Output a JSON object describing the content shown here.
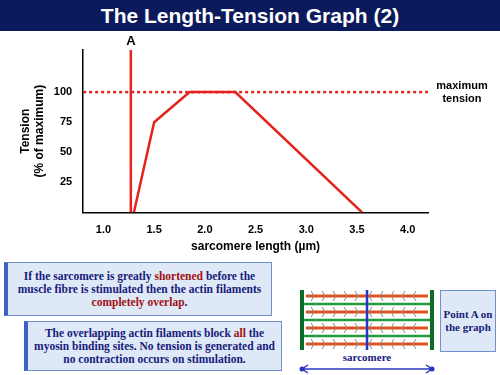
{
  "title": "The Length-Tension Graph (2)",
  "chart_data": {
    "type": "line",
    "x_label": "sarcomere length (µm)",
    "y_label": [
      "Tension",
      "(% of maximum)"
    ],
    "series": [
      {
        "x": [
          1.3,
          1.5,
          1.85,
          2.3,
          3.55
        ],
        "values": [
          0,
          75,
          100,
          100,
          0
        ],
        "color": "#e3231c",
        "line_style": "solid"
      },
      {
        "x": [
          1.27,
          1.27
        ],
        "values": [
          0,
          135
        ],
        "color": "#e3231c",
        "line_style": "solid"
      },
      {
        "x": [
          0.8,
          4.2
        ],
        "values": [
          100,
          100
        ],
        "color": "#e3231c",
        "line_style": "dotted"
      }
    ],
    "xlim": [
      0.8,
      4.2
    ],
    "xticks": [
      {
        "value": 1,
        "label": "1.0"
      },
      1.5,
      {
        "value": 2,
        "label": "2.0"
      },
      2.5,
      {
        "value": 3,
        "label": "3.0"
      },
      3.5,
      {
        "value": 4,
        "label": "4.0"
      }
    ],
    "ylim": [
      0,
      135
    ],
    "yticks": [
      25,
      50,
      75,
      100
    ],
    "grid": false,
    "annotations": [
      {
        "text": "A",
        "x": 1.27,
        "y": 135
      },
      {
        "text": "maximum tension",
        "y": 100
      }
    ]
  },
  "notes": [
    [
      {
        "text": "If the sarcomere is greatly "
      },
      {
        "text": "shortened",
        "emphasis": true
      },
      {
        "text": " before the muscle fibre is stimulated then the actin filaments "
      },
      {
        "text": "completely overlap",
        "emphasis": true
      },
      {
        "text": "."
      }
    ],
    [
      {
        "text": "The overlapping actin filaments block "
      },
      {
        "text": "all",
        "emphasis": true
      },
      {
        "text": " the myosin binding sites. No tension is generated and no contraction occurs on stimulation."
      }
    ]
  ],
  "diagram": {
    "label": "sarcomere",
    "caption": "Point A on the graph"
  }
}
